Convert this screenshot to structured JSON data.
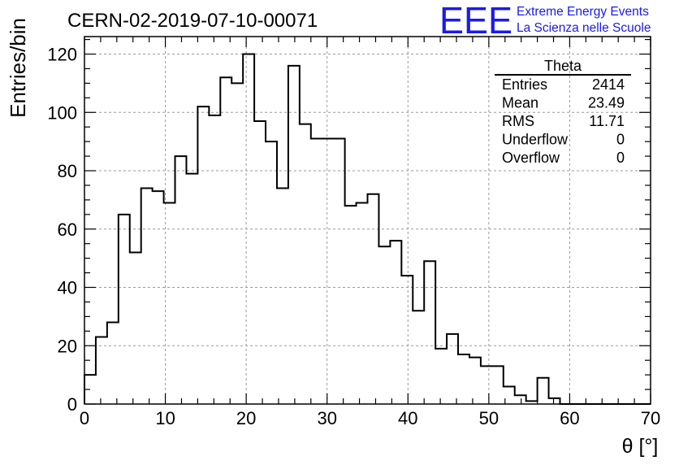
{
  "run_id": "CERN-02-2019-07-10-00071",
  "logo": {
    "text": "EEE",
    "line1": "Extreme Energy Events",
    "line2": "La Scienza nelle Scuole",
    "color": "#1a1aee"
  },
  "stats": {
    "title": "Theta",
    "rows": [
      {
        "label": "Entries",
        "value": "2414"
      },
      {
        "label": "Mean",
        "value": "23.49"
      },
      {
        "label": "RMS",
        "value": "11.71"
      },
      {
        "label": "Underflow",
        "value": "0"
      },
      {
        "label": "Overflow",
        "value": "0"
      }
    ]
  },
  "chart_data": {
    "type": "bar",
    "style": "step-histogram",
    "xlabel": "θ [°]",
    "ylabel": "Entries/bin",
    "xlim": [
      0,
      70
    ],
    "ylim": [
      0,
      126
    ],
    "x_ticks": [
      0,
      10,
      20,
      30,
      40,
      50,
      60,
      70
    ],
    "y_ticks": [
      0,
      20,
      40,
      60,
      80,
      100,
      120
    ],
    "grid": true,
    "bin_width": 1.4,
    "bin_edges_start": 0,
    "values": [
      10,
      23,
      28,
      65,
      52,
      74,
      73,
      69,
      85,
      79,
      102,
      99,
      112,
      110,
      120,
      97,
      90,
      74,
      116,
      96,
      91,
      91,
      91,
      68,
      69,
      72,
      54,
      56,
      44,
      32,
      49,
      19,
      24,
      17,
      16,
      13,
      13,
      6,
      3,
      1,
      9,
      2,
      0,
      0,
      0,
      0,
      0,
      0,
      0,
      0
    ],
    "line_color": "#000000"
  }
}
